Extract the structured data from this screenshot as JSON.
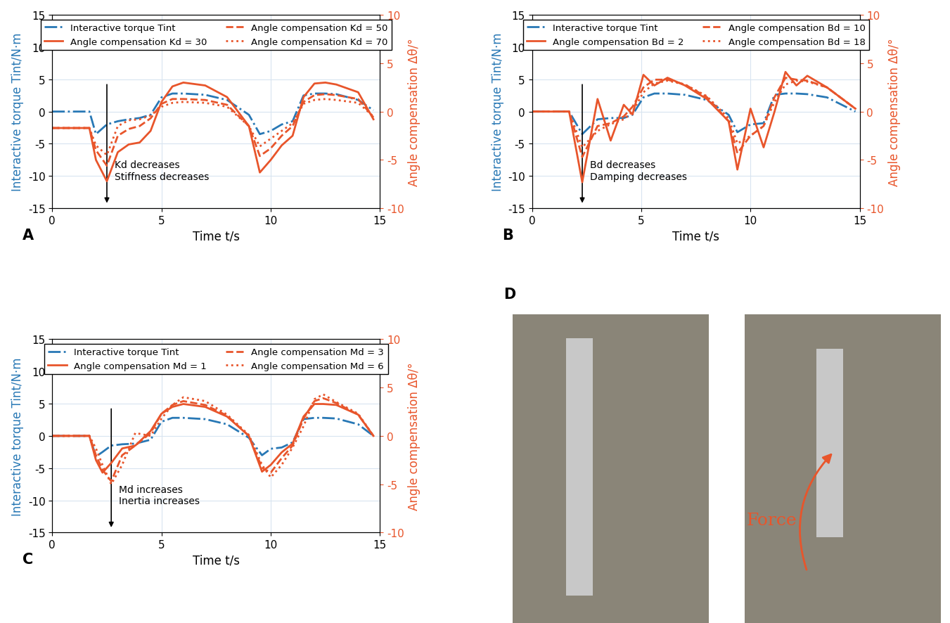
{
  "chart_data": [
    {
      "type": "line",
      "title": "A",
      "x_label": "Time t/s",
      "y_label": "Interactive torque Tint/N·m",
      "y2_label": "Angle compensation Δθ/°",
      "annotation": "Kd decreases\nStiffness decreases",
      "xlim": [
        0,
        15
      ],
      "xticks": [
        0,
        5,
        10,
        15
      ],
      "ylim": [
        -15,
        15
      ],
      "yticks": [
        -15,
        -10,
        -5,
        0,
        5,
        10,
        15
      ],
      "y2lim": [
        -10,
        10
      ],
      "y2ticks": [
        -10,
        -5,
        0,
        5,
        10
      ],
      "grid": true,
      "legend": "upper center",
      "x": [
        0,
        1.7,
        2.0,
        2.5,
        3.0,
        3.5,
        4.0,
        4.5,
        5.0,
        5.5,
        6.0,
        7.0,
        8.0,
        9.0,
        9.5,
        10.0,
        10.5,
        11.0,
        11.5,
        12.0,
        12.5,
        13.0,
        14.0,
        14.7
      ],
      "series": [
        {
          "name": "Interactive torque Tint",
          "color": "#2878b5",
          "line_style": "dashdot",
          "values": [
            0,
            0,
            -3.5,
            -2,
            -1.5,
            -1.2,
            -1,
            -0.5,
            2.2,
            2.8,
            2.8,
            2.6,
            1.8,
            -0.5,
            -3.5,
            -3,
            -2,
            -1.5,
            2.5,
            2.8,
            2.8,
            2.7,
            1.8,
            0.2
          ]
        },
        {
          "name": "Angle compensation Kd = 30",
          "color": "#e8552b",
          "line_style": "solid",
          "axis": "y2",
          "values": [
            -1.7,
            -1.7,
            -5,
            -7.2,
            -4.2,
            -3.4,
            -3.2,
            -2,
            1,
            2.6,
            3,
            2.7,
            1.5,
            -1.5,
            -6.3,
            -5,
            -3.5,
            -2.5,
            1.5,
            2.9,
            3,
            2.8,
            2,
            -0.8
          ]
        },
        {
          "name": "Angle compensation Kd = 50",
          "color": "#e8552b",
          "line_style": "dashed",
          "axis": "y2",
          "values": [
            -1.7,
            -1.7,
            -4,
            -5.6,
            -2.5,
            -1.8,
            -1.5,
            -0.7,
            0.8,
            1.3,
            1.3,
            1.2,
            0.7,
            -1.5,
            -4.6,
            -3.8,
            -2.5,
            -1.5,
            1,
            1.7,
            1.8,
            1.7,
            1.3,
            -0.6
          ]
        },
        {
          "name": "Angle compensation Kd = 70",
          "color": "#e8552b",
          "line_style": "dotted",
          "axis": "y2",
          "values": [
            -1.7,
            -1.7,
            -3.5,
            -4.5,
            -1.5,
            -0.9,
            -0.8,
            -0.4,
            0.5,
            0.9,
            1,
            0.9,
            0.5,
            -1.5,
            -3.6,
            -2.8,
            -2,
            -1.2,
            0.8,
            1.2,
            1.3,
            1.2,
            0.9,
            -0.5
          ]
        }
      ]
    },
    {
      "type": "line",
      "title": "B",
      "x_label": "Time t/s",
      "y_label": "Interactive torque Tint/N·m",
      "y2_label": "Angle compensation Δθ/°",
      "annotation": "Bd decreases\nDamping decreases",
      "xlim": [
        0,
        15
      ],
      "xticks": [
        0,
        5,
        10,
        15
      ],
      "ylim": [
        -15,
        15
      ],
      "yticks": [
        -15,
        -10,
        -5,
        0,
        5,
        10,
        15
      ],
      "y2lim": [
        -10,
        10
      ],
      "y2ticks": [
        -10,
        -5,
        0,
        5,
        10
      ],
      "grid": true,
      "legend": "upper center",
      "x": [
        0,
        1.7,
        2.3,
        3.0,
        3.6,
        4.2,
        4.6,
        5.1,
        5.6,
        6.2,
        7.0,
        8.0,
        9.0,
        9.4,
        10.0,
        10.6,
        11.1,
        11.6,
        12.1,
        12.6,
        13.5,
        14.8
      ],
      "series": [
        {
          "name": "Interactive torque Tint",
          "color": "#2878b5",
          "line_style": "dashdot",
          "values": [
            0,
            0,
            -3.5,
            -1.2,
            -1,
            -1,
            -0.5,
            2.2,
            2.8,
            2.8,
            2.6,
            1.8,
            -0.5,
            -3.2,
            -2,
            -1.8,
            2.6,
            2.8,
            2.8,
            2.7,
            2.2,
            0
          ]
        },
        {
          "name": "Angle compensation Bd = 2",
          "color": "#e8552b",
          "line_style": "solid",
          "axis": "y2",
          "values": [
            0,
            0,
            -7.3,
            1.3,
            -3,
            0.7,
            -0.3,
            3.8,
            2.7,
            3.5,
            2.7,
            1.3,
            -1,
            -6,
            0.3,
            -3.7,
            0,
            4.1,
            2.7,
            3.7,
            2.5,
            0.3
          ]
        },
        {
          "name": "Angle compensation Bd = 10",
          "color": "#e8552b",
          "line_style": "dashed",
          "axis": "y2",
          "values": [
            0,
            0,
            -4.7,
            -1.5,
            -1.2,
            -0.5,
            0.5,
            2.5,
            3.3,
            3.3,
            2.8,
            1.5,
            -1,
            -4.3,
            -2.5,
            -1.5,
            1.5,
            3.5,
            3.3,
            3.2,
            2.5,
            0.3
          ]
        },
        {
          "name": "Angle compensation Bd = 18",
          "color": "#e8552b",
          "line_style": "dotted",
          "axis": "y2",
          "values": [
            0,
            0,
            -3.7,
            -2,
            -1.3,
            -0.8,
            0,
            2,
            2.9,
            3.2,
            2.8,
            1.6,
            -0.7,
            -3.3,
            -2.5,
            -1.5,
            1,
            2.8,
            3.2,
            3.1,
            2.5,
            0.3
          ]
        }
      ]
    },
    {
      "type": "line",
      "title": "C",
      "x_label": "Time t/s",
      "y_label": "Interactive torque Tint/N·m",
      "y2_label": "Angle compensation Δθ/°",
      "annotation": "Md increases\nInertia increases",
      "xlim": [
        0,
        15
      ],
      "xticks": [
        0,
        5,
        10,
        15
      ],
      "ylim": [
        -15,
        15
      ],
      "yticks": [
        -15,
        -10,
        -5,
        0,
        5,
        10,
        15
      ],
      "y2lim": [
        -10,
        10
      ],
      "y2ticks": [
        -10,
        -5,
        0,
        5,
        10
      ],
      "grid": true,
      "legend": "upper center",
      "x": [
        0,
        1.7,
        2.0,
        2.3,
        2.7,
        3.2,
        3.8,
        4.5,
        5.0,
        5.5,
        6.0,
        7.0,
        8.0,
        9.0,
        9.6,
        10.0,
        10.5,
        11.0,
        11.5,
        12.0,
        12.4,
        13.0,
        14.0,
        14.7
      ],
      "series": [
        {
          "name": "Interactive torque Tint",
          "color": "#2878b5",
          "line_style": "dashdot",
          "values": [
            0,
            0,
            -3.2,
            -2.5,
            -1.5,
            -1.3,
            -1.2,
            -0.6,
            2.2,
            2.8,
            2.8,
            2.6,
            1.8,
            -0.3,
            -3,
            -2,
            -1.8,
            -1,
            2.6,
            2.8,
            2.8,
            2.7,
            1.8,
            0
          ]
        },
        {
          "name": "Angle compensation Md = 1",
          "color": "#e8552b",
          "line_style": "solid",
          "axis": "y2",
          "values": [
            0,
            0,
            -2.5,
            -3.8,
            -2.8,
            -1.3,
            -1,
            0.5,
            2.3,
            3,
            3.3,
            3,
            2,
            0,
            -3.7,
            -3,
            -1.7,
            -0.8,
            2,
            3.3,
            3.3,
            3.2,
            2.2,
            0
          ]
        },
        {
          "name": "Angle compensation Md = 3",
          "color": "#e8552b",
          "line_style": "dashed",
          "axis": "y2",
          "values": [
            0,
            0,
            -2,
            -3.5,
            -4.7,
            -2,
            -1,
            0.3,
            2.3,
            3.2,
            3.6,
            3.2,
            2.1,
            0,
            -3.3,
            -3.8,
            -2.3,
            -1,
            1.8,
            3.6,
            3.9,
            3.4,
            2.2,
            0
          ]
        },
        {
          "name": "Angle compensation Md = 6",
          "color": "#e8552b",
          "line_style": "dotted",
          "axis": "y2",
          "values": [
            0,
            0,
            -1.3,
            -3,
            -5,
            -3,
            0.3,
            0,
            1.8,
            3.2,
            4,
            3.6,
            2.2,
            0.1,
            -3,
            -4.3,
            -3,
            -1.2,
            1,
            3.8,
            4.3,
            3.5,
            2.3,
            0
          ]
        }
      ]
    }
  ],
  "photo_panel": {
    "title": "D",
    "annotation": "Force"
  }
}
